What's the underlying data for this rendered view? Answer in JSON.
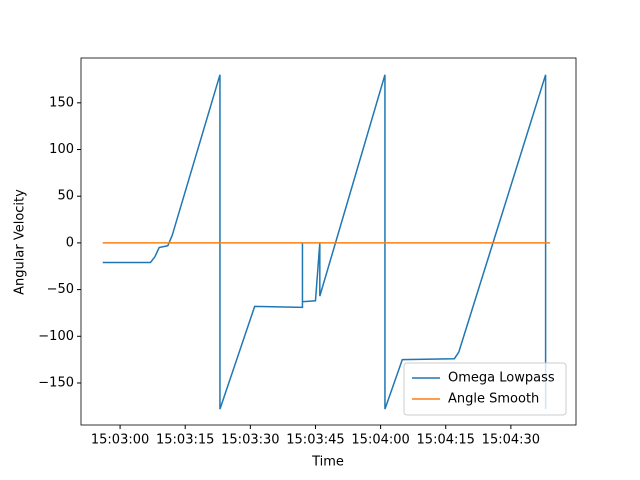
{
  "chart_data": {
    "type": "line",
    "xlabel": "Time",
    "ylabel": "Angular Velocity",
    "xlim": [
      "15:02:51",
      "15:04:45"
    ],
    "ylim": [
      -195,
      198
    ],
    "xticks": [
      "15:03:00",
      "15:03:15",
      "15:03:30",
      "15:03:45",
      "15:04:00",
      "15:04:15",
      "15:04:30"
    ],
    "yticks": [
      {
        "value": -150,
        "label": "−150"
      },
      {
        "value": -100,
        "label": "−100"
      },
      {
        "value": -50,
        "label": "−50"
      },
      0,
      50,
      100,
      150
    ],
    "legend": "lower right",
    "series": [
      {
        "name": "Omega Lowpass",
        "color": "#1f77b4",
        "x": [
          "15:02:56",
          "15:03:07",
          "15:03:08",
          "15:03:09",
          "15:03:11",
          "15:03:12",
          "15:03:23",
          "15:03:23",
          "15:03:31",
          "15:03:42",
          "15:03:42",
          "15:03:42",
          "15:03:45",
          "15:03:46",
          "15:03:46",
          "15:04:01",
          "15:04:01",
          "15:04:05",
          "15:04:17",
          "15:04:18",
          "15:04:38",
          "15:04:38"
        ],
        "values": [
          -21,
          -21,
          -15,
          -5,
          -3,
          8,
          180,
          -178,
          -68,
          -69,
          0,
          -63,
          -62,
          0,
          -57,
          180,
          -178,
          -125,
          -124,
          -117,
          180,
          -178
        ]
      },
      {
        "name": "Angle Smooth",
        "color": "#ff7f0e",
        "x": [
          "15:02:56",
          "15:04:39"
        ],
        "values": [
          0,
          0
        ]
      }
    ]
  }
}
